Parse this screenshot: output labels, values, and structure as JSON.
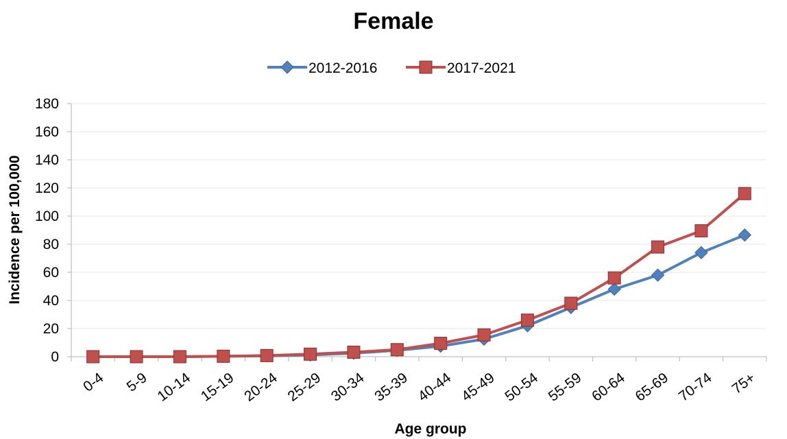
{
  "chart_data": {
    "type": "line",
    "title": "Female",
    "xlabel": "Age group",
    "ylabel": "Incidence per 100,000",
    "ylim": [
      0,
      180
    ],
    "yticks": [
      0,
      20,
      40,
      60,
      80,
      100,
      120,
      140,
      160,
      180
    ],
    "grid": true,
    "legend_position": "top",
    "categories": [
      "0-4",
      "5-9",
      "10-14",
      "15-19",
      "20-24",
      "25-29",
      "30-34",
      "35-39",
      "40-44",
      "45-49",
      "50-54",
      "55-59",
      "60-64",
      "65-69",
      "70-74",
      "75+"
    ],
    "series": [
      {
        "name": "2012-2016",
        "color": "#4F81BD",
        "marker": "diamond",
        "values": [
          0,
          0,
          0,
          0.3,
          0.6,
          1.2,
          2.5,
          4.5,
          7.5,
          12.5,
          22,
          35,
          48,
          58,
          74,
          86.5
        ]
      },
      {
        "name": "2017-2021",
        "color": "#C0504D",
        "marker": "square",
        "values": [
          0,
          0,
          0,
          0.3,
          0.8,
          1.8,
          3.2,
          5,
          9.5,
          15.5,
          26,
          38,
          56,
          78,
          89.5,
          116
        ]
      }
    ]
  }
}
